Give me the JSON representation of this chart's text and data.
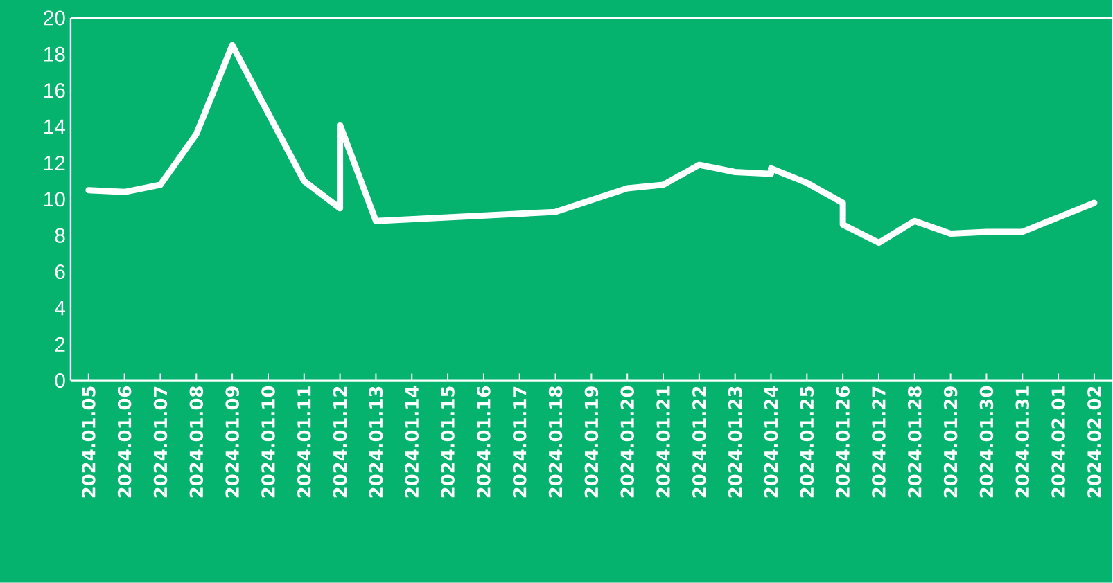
{
  "chart_data": {
    "type": "line",
    "x": [
      "2024-01-05",
      "2024-01-06",
      "2024-01-07",
      "2024-01-08",
      "2024-01-09",
      "2024-01-11",
      "2024-01-12",
      "2024-01-12",
      "2024-01-13",
      "2024-01-18",
      "2024-01-20",
      "2024-01-21",
      "2024-01-22",
      "2024-01-23",
      "2024-01-24",
      "2024-01-24",
      "2024-01-25",
      "2024-01-26",
      "2024-01-26",
      "2024-01-27",
      "2024-01-28",
      "2024-01-29",
      "2024-01-30",
      "2024-01-31",
      "2024-02-02"
    ],
    "series": [
      {
        "color": "#ffffff",
        "values": [
          10.5,
          10.4,
          10.8,
          13.6,
          18.5,
          11.0,
          9.5,
          14.1,
          8.8,
          9.3,
          10.6,
          10.8,
          11.9,
          11.5,
          11.4,
          11.7,
          10.9,
          9.8,
          8.6,
          7.6,
          8.8,
          8.1,
          8.2,
          8.2,
          9.8
        ]
      }
    ],
    "xlim": [
      "2024-01-04T12:00",
      "2024-02-02T12:00"
    ],
    "xticks": [
      {
        "value": "2024-01-05",
        "label": "2024.01.05"
      },
      {
        "value": "2024-01-06",
        "label": "2024.01.06"
      },
      {
        "value": "2024-01-07",
        "label": "2024.01.07"
      },
      {
        "value": "2024-01-08",
        "label": "2024.01.08"
      },
      {
        "value": "2024-01-09",
        "label": "2024.01.09"
      },
      {
        "value": "2024-01-10",
        "label": "2024.01.10"
      },
      {
        "value": "2024-01-11",
        "label": "2024.01.11"
      },
      {
        "value": "2024-01-12",
        "label": "2024.01.12"
      },
      {
        "value": "2024-01-13",
        "label": "2024.01.13"
      },
      {
        "value": "2024-01-14",
        "label": "2024.01.14"
      },
      {
        "value": "2024-01-15",
        "label": "2024.01.15"
      },
      {
        "value": "2024-01-16",
        "label": "2024.01.16"
      },
      {
        "value": "2024-01-17",
        "label": "2024.01.17"
      },
      {
        "value": "2024-01-18",
        "label": "2024.01.18"
      },
      {
        "value": "2024-01-19",
        "label": "2024.01.19"
      },
      {
        "value": "2024-01-20",
        "label": "2024.01.20"
      },
      {
        "value": "2024-01-21",
        "label": "2024.01.21"
      },
      {
        "value": "2024-01-22",
        "label": "2024.01.22"
      },
      {
        "value": "2024-01-23",
        "label": "2024.01.23"
      },
      {
        "value": "2024-01-24",
        "label": "2024.01.24"
      },
      {
        "value": "2024-01-25",
        "label": "2024.01.25"
      },
      {
        "value": "2024-01-26",
        "label": "2024.01.26"
      },
      {
        "value": "2024-01-27",
        "label": "2024.01.27"
      },
      {
        "value": "2024-01-28",
        "label": "2024.01.28"
      },
      {
        "value": "2024-01-29",
        "label": "2024.01.29"
      },
      {
        "value": "2024-01-30",
        "label": "2024.01.30"
      },
      {
        "value": "2024-01-31",
        "label": "2024.01.31"
      },
      {
        "value": "2024-02-01",
        "label": "2024.02.01"
      },
      {
        "value": "2024-02-02",
        "label": "2024.02.02"
      }
    ],
    "ylim": [
      0,
      20
    ],
    "yticks": [
      0,
      2,
      4,
      6,
      8,
      10,
      12,
      14,
      16,
      18,
      20
    ],
    "line_style": "solid"
  }
}
